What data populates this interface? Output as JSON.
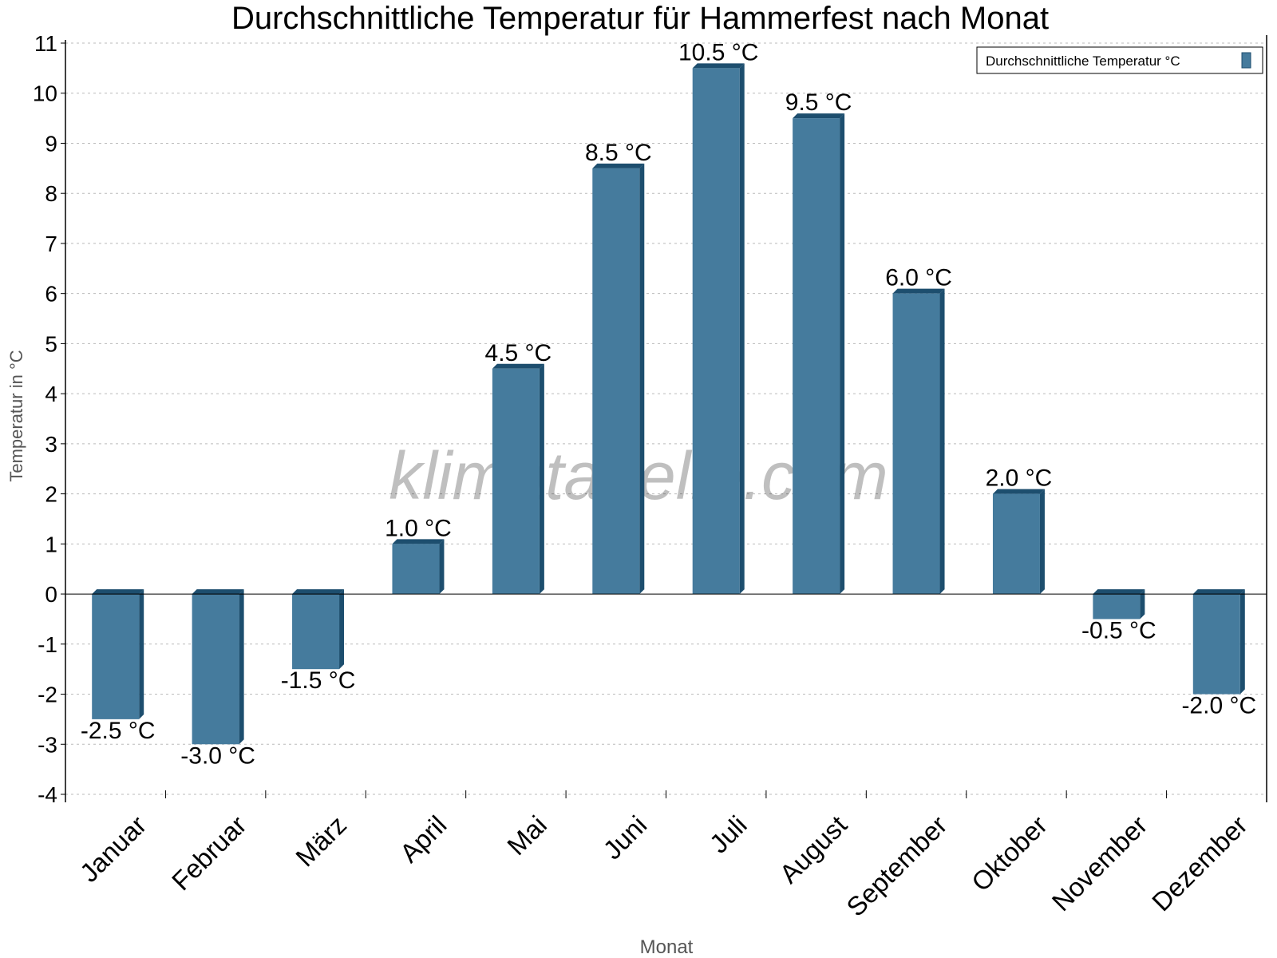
{
  "chart_data": {
    "type": "bar",
    "title": "Durchschnittliche Temperatur für Hammerfest nach Monat",
    "xlabel": "Monat",
    "ylabel": "Temperatur in °C",
    "categories": [
      "Januar",
      "Februar",
      "März",
      "April",
      "Mai",
      "Juni",
      "Juli",
      "August",
      "September",
      "Oktober",
      "November",
      "Dezember"
    ],
    "series": [
      {
        "name": "Durchschnittliche Temperatur °C",
        "values": [
          -2.5,
          -3.0,
          -1.5,
          1.0,
          4.5,
          8.5,
          10.5,
          9.5,
          6.0,
          2.0,
          -0.5,
          -2.0
        ],
        "labels": [
          "-2.5 °C",
          "-3.0 °C",
          "-1.5 °C",
          "1.0 °C",
          "4.5 °C",
          "8.5 °C",
          "10.5 °C",
          "9.5 °C",
          "6.0 °C",
          "2.0 °C",
          "-0.5 °C",
          "-2.0 °C"
        ]
      }
    ],
    "ylim": [
      -4,
      11
    ],
    "yticks": [
      "-4",
      "-3",
      "-2",
      "-1",
      "0",
      "1",
      "2",
      "3",
      "4",
      "5",
      "6",
      "7",
      "8",
      "9",
      "10",
      "11"
    ],
    "grid": true,
    "legend_position": "top-right",
    "colors": {
      "bar": "#457b9d",
      "bar_side": "#1d4e6e"
    },
    "watermark": "klimatabelle.com"
  }
}
